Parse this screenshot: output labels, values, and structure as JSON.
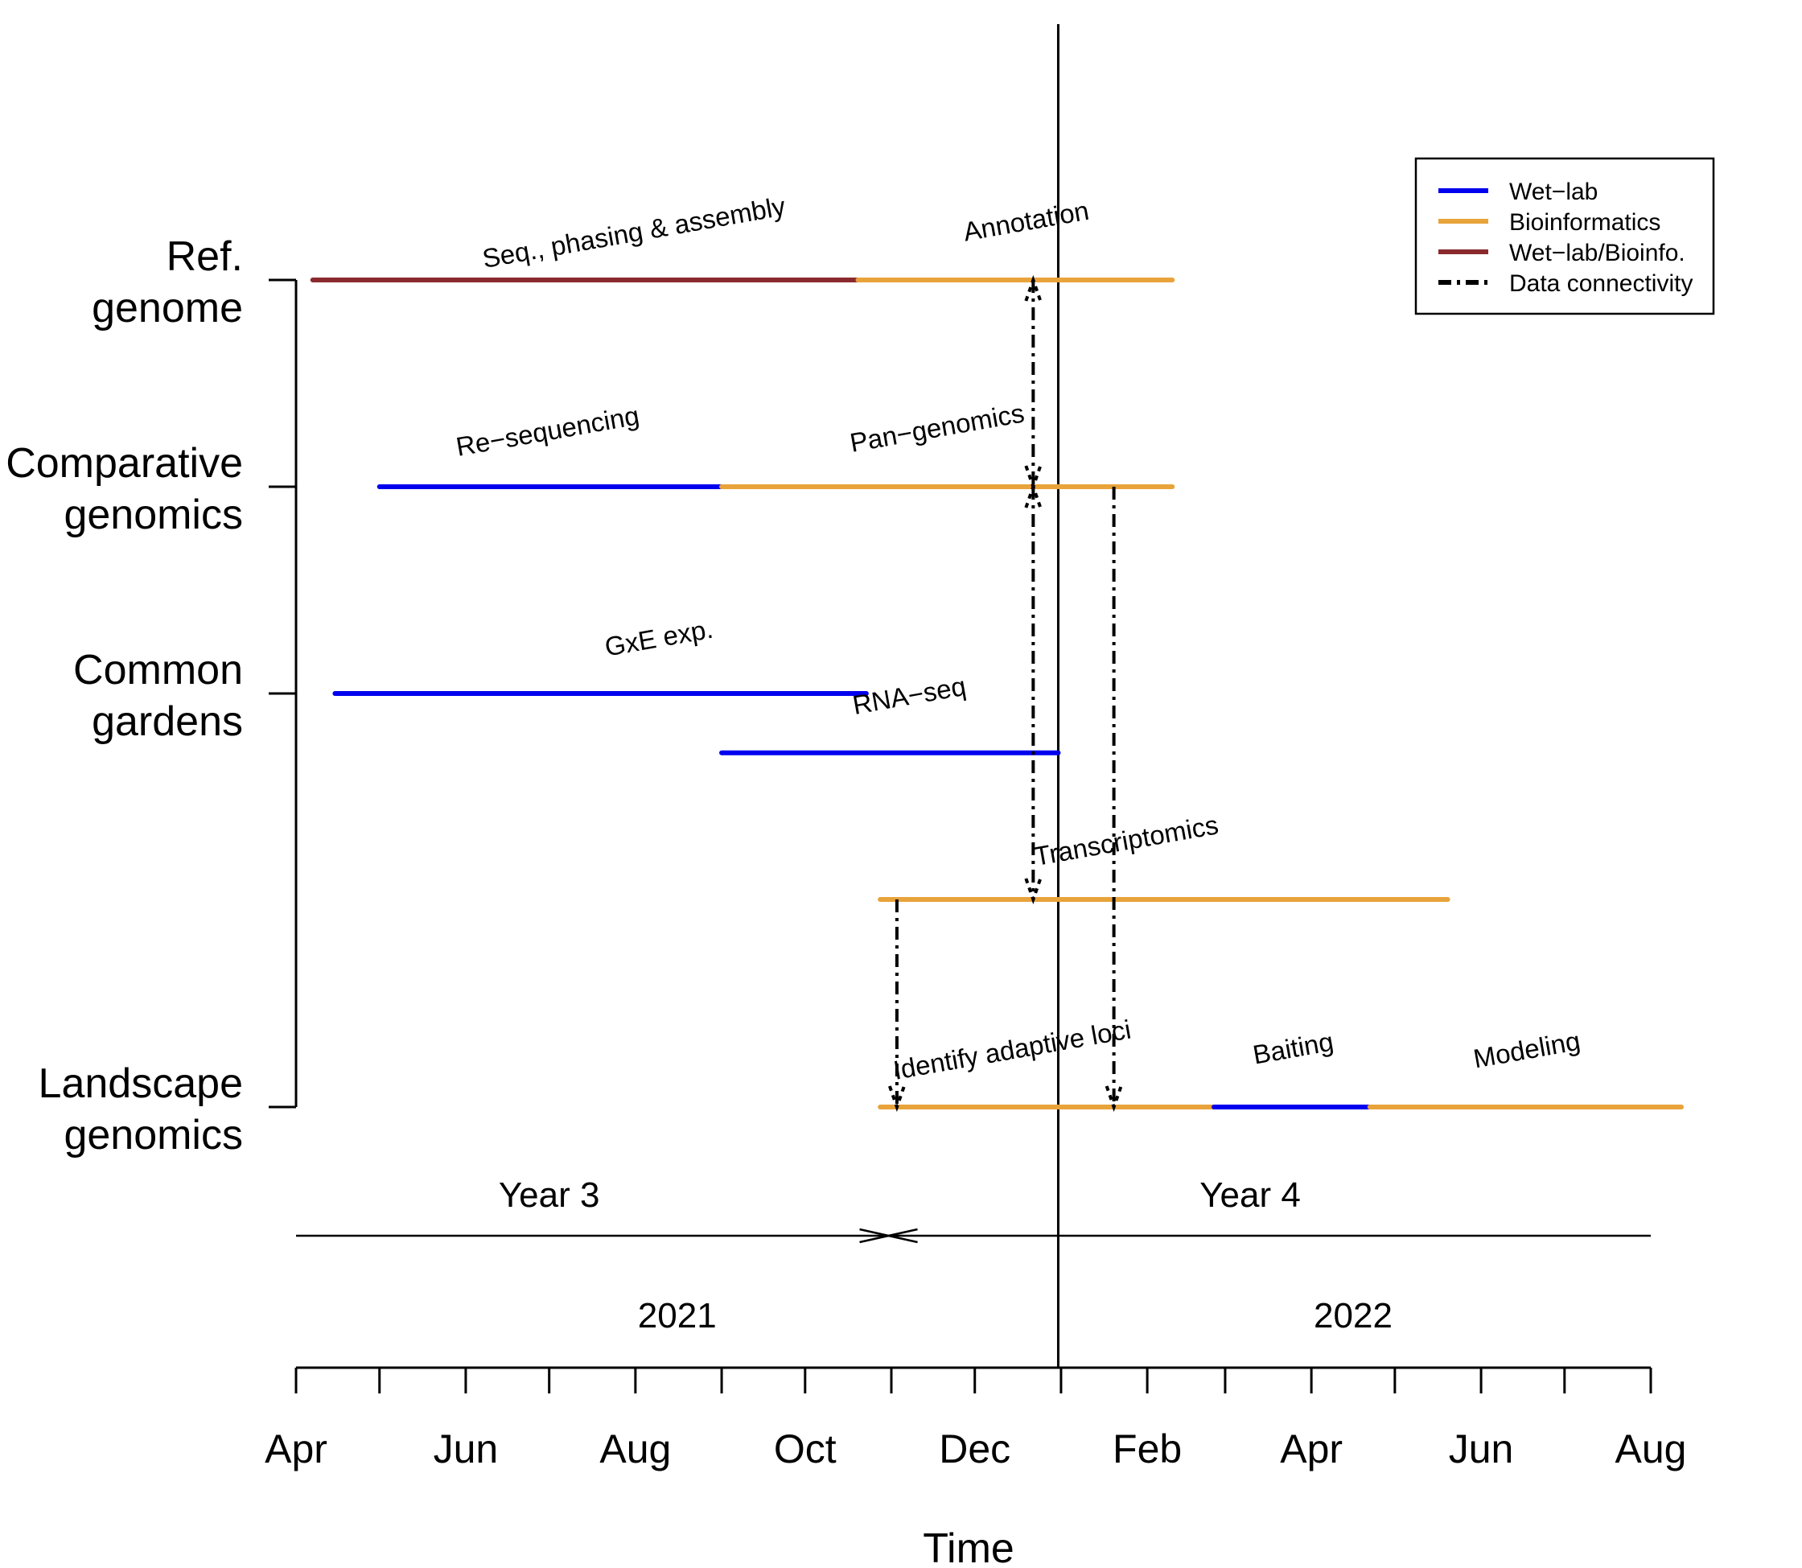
{
  "chart_data": {
    "type": "gantt-timeline",
    "xlabel": "Time",
    "x_range": [
      "2021-04-01",
      "2022-08-01"
    ],
    "x_ticks": [
      "2021-04-01",
      "2021-05-01",
      "2021-06-01",
      "2021-07-01",
      "2021-08-01",
      "2021-09-01",
      "2021-10-01",
      "2021-11-01",
      "2021-12-01",
      "2022-01-01",
      "2022-02-01",
      "2022-03-01",
      "2022-04-01",
      "2022-05-01",
      "2022-06-01",
      "2022-07-01",
      "2022-08-01"
    ],
    "x_tick_labels": [
      {
        "date": "2021-04-01",
        "label": "Apr"
      },
      {
        "date": "2021-06-01",
        "label": "Jun"
      },
      {
        "date": "2021-08-01",
        "label": "Aug"
      },
      {
        "date": "2021-10-01",
        "label": "Oct"
      },
      {
        "date": "2021-12-01",
        "label": "Dec"
      },
      {
        "date": "2022-02-01",
        "label": "Feb"
      },
      {
        "date": "2022-04-01",
        "label": "Apr"
      },
      {
        "date": "2022-06-01",
        "label": "Jun"
      },
      {
        "date": "2022-08-01",
        "label": "Aug"
      }
    ],
    "categories": [
      {
        "line1": "Ref.",
        "line2": "genome"
      },
      {
        "line1": "Comparative",
        "line2": "genomics"
      },
      {
        "line1": "Common",
        "line2": "gardens"
      },
      {
        "line1": "Landscape",
        "line2": "genomics"
      }
    ],
    "colors": {
      "wet_lab": "#0000ee",
      "bioinformatics": "#e8a33a",
      "wet_lab_bioinfo": "#8b2a2e"
    },
    "legend": {
      "position": "top-right",
      "entries": [
        {
          "label": "Wet−lab",
          "type": "wet_lab"
        },
        {
          "label": "Bioinformatics",
          "type": "bioinformatics"
        },
        {
          "label": "Wet−lab/Bioinfo.",
          "type": "wet_lab_bioinfo"
        },
        {
          "label": "Data connectivity",
          "type": "connectivity"
        }
      ]
    },
    "tasks": [
      {
        "label": "Seq., phasing & assembly",
        "start": "2021-04-07",
        "end": "2021-10-20",
        "type": "wet_lab_bioinfo",
        "row": 0
      },
      {
        "label": "Annotation",
        "start": "2021-10-20",
        "end": "2022-02-10",
        "type": "bioinformatics",
        "row": 0
      },
      {
        "label": "Re−sequencing",
        "start": "2021-05-01",
        "end": "2021-09-01",
        "type": "wet_lab",
        "row": 1
      },
      {
        "label": "Pan−genomics",
        "start": "2021-09-01",
        "end": "2022-02-10",
        "type": "bioinformatics",
        "row": 1
      },
      {
        "label": "GxE exp.",
        "start": "2021-04-15",
        "end": "2021-10-23",
        "type": "wet_lab",
        "row": 2
      },
      {
        "label": "RNA−seq",
        "start": "2021-09-01",
        "end": "2021-12-31",
        "type": "wet_lab",
        "row": 2.4
      },
      {
        "label": "Transcriptomics",
        "start": "2021-10-28",
        "end": "2022-05-20",
        "type": "bioinformatics",
        "row": 3
      },
      {
        "label": "Identify adaptive loci",
        "start": "2021-10-28",
        "end": "2022-02-25",
        "type": "bioinformatics",
        "row": 4
      },
      {
        "label": "Baiting",
        "start": "2022-02-25",
        "end": "2022-04-22",
        "type": "wet_lab",
        "row": 4
      },
      {
        "label": "Modeling",
        "start": "2022-04-22",
        "end": "2022-08-12",
        "type": "bioinformatics",
        "row": 4
      }
    ],
    "connectivity": [
      {
        "date": "2021-12-22",
        "from_row": 0,
        "to_row": 1,
        "both_directions": true
      },
      {
        "date": "2021-12-22",
        "from_row": 1,
        "to_row": 3,
        "both_directions": true
      },
      {
        "date": "2021-11-03",
        "from_row": 3,
        "to_row": 4,
        "both_directions": false
      },
      {
        "date": "2022-01-20",
        "from_row": 1,
        "to_row": 4,
        "both_directions": false
      }
    ],
    "period_marker": "2021-12-31",
    "academic_years": [
      {
        "label": "Year 3",
        "start": "2021-04-01",
        "end": "2021-10-31"
      },
      {
        "label": "Year 4",
        "start": "2021-10-31",
        "end": "2022-08-01"
      }
    ],
    "calendar_years": [
      {
        "label": "2021",
        "center": "2021-08-16"
      },
      {
        "label": "2022",
        "center": "2022-04-16"
      }
    ]
  }
}
